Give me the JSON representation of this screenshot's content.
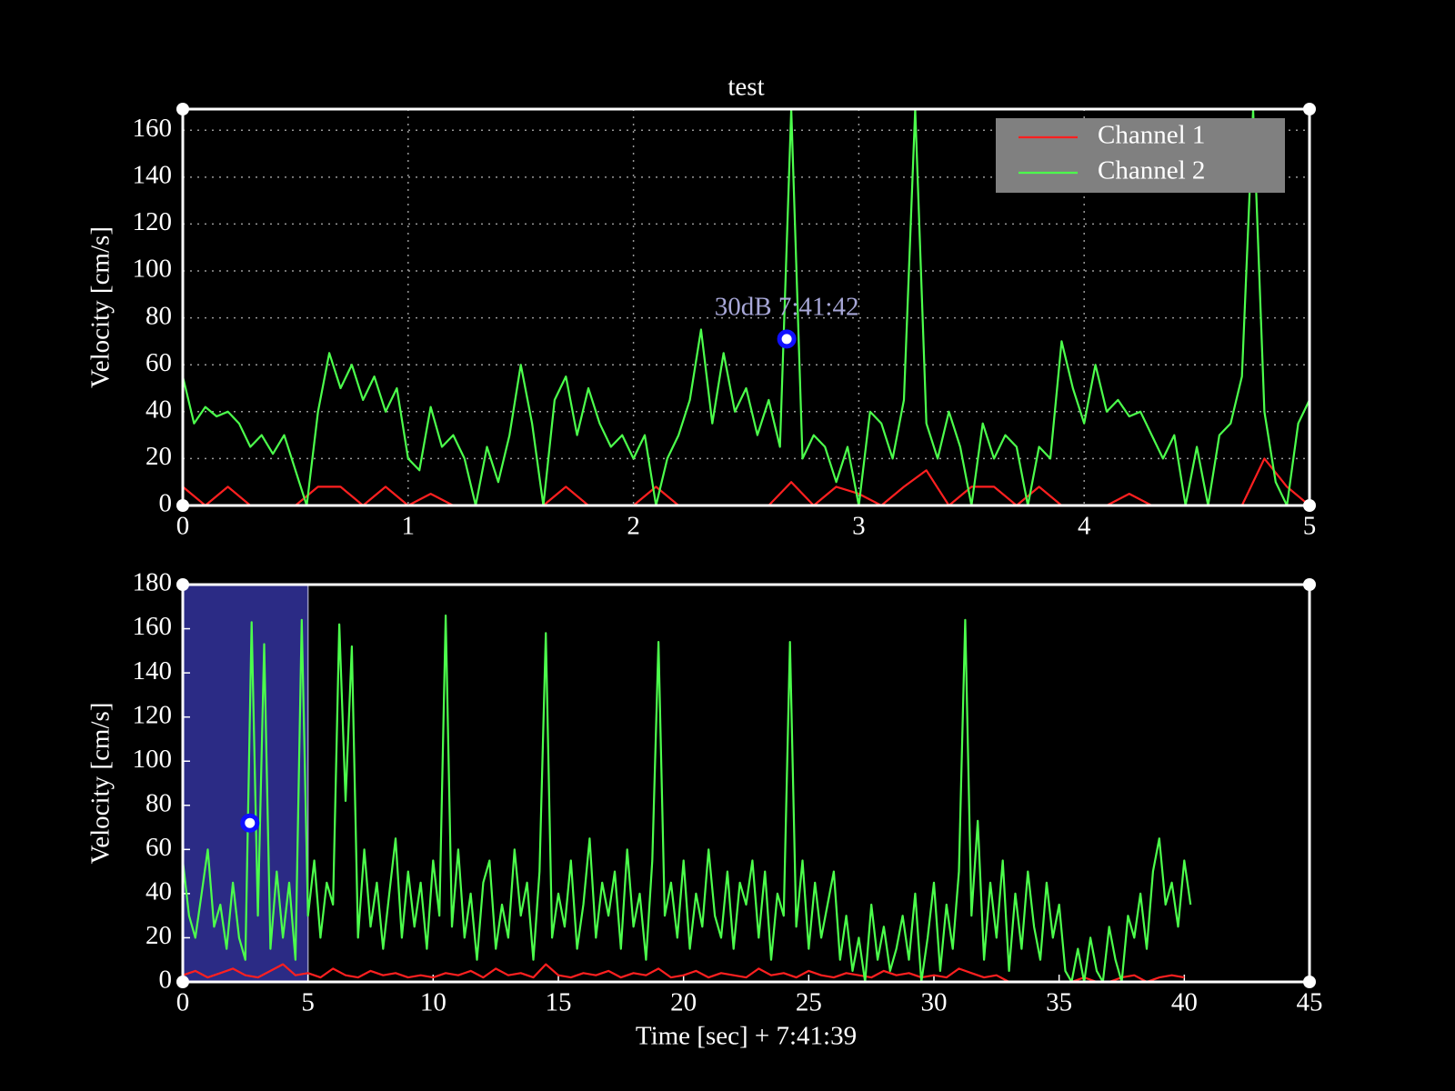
{
  "chart_data": [
    {
      "type": "line",
      "title": "test",
      "ylabel": "Velocity [cm/s]",
      "xlim": [
        0,
        5
      ],
      "xticks": [
        0,
        1,
        2,
        3,
        4,
        5
      ],
      "ylim": [
        0,
        169
      ],
      "yticks": [
        0,
        20,
        40,
        60,
        80,
        100,
        120,
        140,
        160
      ],
      "grid": true,
      "legend": "upper right",
      "series": [
        {
          "name": "Channel 1",
          "color": "#ff2020",
          "x": [
            0,
            0.1,
            0.2,
            0.3,
            0.4,
            0.5,
            0.6,
            0.7,
            0.8,
            0.9,
            1,
            1.1,
            1.2,
            1.3,
            1.4,
            1.5,
            1.6,
            1.7,
            1.8,
            1.9,
            2,
            2.1,
            2.2,
            2.3,
            2.4,
            2.5,
            2.6,
            2.7,
            2.8,
            2.9,
            3,
            3.1,
            3.2,
            3.3,
            3.4,
            3.5,
            3.6,
            3.7,
            3.8,
            3.9,
            4,
            4.1,
            4.2,
            4.3,
            4.4,
            4.5,
            4.6,
            4.7,
            4.8,
            4.9,
            5
          ],
          "values": [
            8,
            0,
            8,
            0,
            0,
            0,
            8,
            8,
            0,
            8,
            0,
            5,
            0,
            0,
            0,
            0,
            0,
            8,
            0,
            0,
            0,
            8,
            0,
            0,
            0,
            0,
            0,
            10,
            0,
            8,
            5,
            0,
            8,
            15,
            0,
            8,
            8,
            0,
            8,
            0,
            0,
            0,
            5,
            0,
            0,
            0,
            0,
            0,
            20,
            8,
            0
          ]
        },
        {
          "name": "Channel 2",
          "color": "#4cff4c",
          "x": [
            0,
            0.05,
            0.1,
            0.15,
            0.2,
            0.25,
            0.3,
            0.35,
            0.4,
            0.45,
            0.5,
            0.55,
            0.6,
            0.65,
            0.7,
            0.75,
            0.8,
            0.85,
            0.9,
            0.95,
            1,
            1.05,
            1.1,
            1.15,
            1.2,
            1.25,
            1.3,
            1.35,
            1.4,
            1.45,
            1.5,
            1.55,
            1.6,
            1.65,
            1.7,
            1.75,
            1.8,
            1.85,
            1.9,
            1.95,
            2,
            2.05,
            2.1,
            2.15,
            2.2,
            2.25,
            2.3,
            2.35,
            2.4,
            2.45,
            2.5,
            2.55,
            2.6,
            2.65,
            2.7,
            2.75,
            2.8,
            2.85,
            2.9,
            2.95,
            3,
            3.05,
            3.1,
            3.15,
            3.2,
            3.25,
            3.3,
            3.35,
            3.4,
            3.45,
            3.5,
            3.55,
            3.6,
            3.65,
            3.7,
            3.75,
            3.8,
            3.85,
            3.9,
            3.95,
            4,
            4.05,
            4.1,
            4.15,
            4.2,
            4.25,
            4.3,
            4.35,
            4.4,
            4.45,
            4.5,
            4.55,
            4.6,
            4.65,
            4.7,
            4.75,
            4.8,
            4.85,
            4.9,
            4.95,
            5
          ],
          "values": [
            55,
            35,
            42,
            38,
            40,
            35,
            25,
            30,
            22,
            30,
            15,
            0,
            40,
            65,
            50,
            60,
            45,
            55,
            40,
            50,
            20,
            15,
            42,
            25,
            30,
            20,
            0,
            25,
            10,
            30,
            60,
            35,
            0,
            45,
            55,
            30,
            50,
            35,
            25,
            30,
            20,
            30,
            0,
            20,
            30,
            45,
            75,
            35,
            65,
            40,
            50,
            30,
            45,
            25,
            169,
            20,
            30,
            25,
            10,
            25,
            0,
            40,
            35,
            20,
            45,
            169,
            35,
            20,
            40,
            25,
            0,
            35,
            20,
            30,
            25,
            0,
            25,
            20,
            70,
            50,
            35,
            60,
            40,
            45,
            38,
            40,
            30,
            20,
            30,
            0,
            25,
            0,
            30,
            35,
            55,
            169,
            40,
            10,
            0,
            35,
            45
          ]
        }
      ],
      "annotation": {
        "text": "30dB 7:41:42",
        "x": 2.68,
        "y": 71
      }
    },
    {
      "type": "line",
      "ylabel": "Velocity [cm/s]",
      "xlabel": "Time [sec] + 7:41:39",
      "xlim": [
        0,
        45
      ],
      "xticks": [
        0,
        5,
        10,
        15,
        20,
        25,
        30,
        35,
        40,
        45
      ],
      "ylim": [
        0,
        180
      ],
      "yticks": [
        0,
        20,
        40,
        60,
        80,
        100,
        120,
        140,
        160,
        180
      ],
      "grid": false,
      "span": [
        0,
        5
      ],
      "series": [
        {
          "name": "Channel 1",
          "color": "#ff2020",
          "x": [
            0,
            0.5,
            1,
            1.5,
            2,
            2.5,
            3,
            3.5,
            4,
            4.5,
            5,
            5.5,
            6,
            6.5,
            7,
            7.5,
            8,
            8.5,
            9,
            9.5,
            10,
            10.5,
            11,
            11.5,
            12,
            12.5,
            13,
            13.5,
            14,
            14.5,
            15,
            15.5,
            16,
            16.5,
            17,
            17.5,
            18,
            18.5,
            19,
            19.5,
            20,
            20.5,
            21,
            21.5,
            22,
            22.5,
            23,
            23.5,
            24,
            24.5,
            25,
            25.5,
            26,
            26.5,
            27,
            27.5,
            28,
            28.5,
            29,
            29.5,
            30,
            30.5,
            31,
            31.5,
            32,
            32.5,
            33,
            33.5,
            34,
            34.5,
            35,
            35.5,
            36,
            36.5,
            37,
            37.5,
            38,
            38.5,
            39,
            39.5,
            40
          ],
          "values": [
            3,
            5,
            2,
            4,
            6,
            3,
            2,
            5,
            8,
            3,
            4,
            2,
            6,
            3,
            2,
            5,
            3,
            4,
            2,
            3,
            2,
            4,
            3,
            5,
            2,
            6,
            3,
            4,
            2,
            8,
            3,
            2,
            4,
            3,
            5,
            2,
            4,
            3,
            6,
            2,
            3,
            5,
            2,
            4,
            3,
            2,
            6,
            3,
            4,
            2,
            5,
            3,
            2,
            4,
            3,
            2,
            5,
            3,
            4,
            2,
            3,
            2,
            6,
            4,
            2,
            3,
            0,
            0,
            0,
            0,
            0,
            0,
            2,
            0,
            0,
            2,
            3,
            0,
            2,
            3,
            2
          ]
        },
        {
          "name": "Channel 2",
          "color": "#4cff4c",
          "x": [
            0,
            0.25,
            0.5,
            0.75,
            1,
            1.25,
            1.5,
            1.75,
            2,
            2.25,
            2.5,
            2.75,
            3,
            3.25,
            3.5,
            3.75,
            4,
            4.25,
            4.5,
            4.75,
            5,
            5.25,
            5.5,
            5.75,
            6,
            6.25,
            6.5,
            6.75,
            7,
            7.25,
            7.5,
            7.75,
            8,
            8.25,
            8.5,
            8.75,
            9,
            9.25,
            9.5,
            9.75,
            10,
            10.25,
            10.5,
            10.75,
            11,
            11.25,
            11.5,
            11.75,
            12,
            12.25,
            12.5,
            12.75,
            13,
            13.25,
            13.5,
            13.75,
            14,
            14.25,
            14.5,
            14.75,
            15,
            15.25,
            15.5,
            15.75,
            16,
            16.25,
            16.5,
            16.75,
            17,
            17.25,
            17.5,
            17.75,
            18,
            18.25,
            18.5,
            18.75,
            19,
            19.25,
            19.5,
            19.75,
            20,
            20.25,
            20.5,
            20.75,
            21,
            21.25,
            21.5,
            21.75,
            22,
            22.25,
            22.5,
            22.75,
            23,
            23.25,
            23.5,
            23.75,
            24,
            24.25,
            24.5,
            24.75,
            25,
            25.25,
            25.5,
            25.75,
            26,
            26.25,
            26.5,
            26.75,
            27,
            27.25,
            27.5,
            27.75,
            28,
            28.25,
            28.5,
            28.75,
            29,
            29.25,
            29.5,
            29.75,
            30,
            30.25,
            30.5,
            30.75,
            31,
            31.25,
            31.5,
            31.75,
            32,
            32.25,
            32.5,
            32.75,
            33,
            33.25,
            33.5,
            33.75,
            34,
            34.25,
            34.5,
            34.75,
            35,
            35.25,
            35.5,
            35.75,
            36,
            36.25,
            36.5,
            36.75,
            37,
            37.25,
            37.5,
            37.75,
            38,
            38.25,
            38.5,
            38.75,
            39,
            39.25,
            39.5,
            39.75,
            40,
            40.25
          ],
          "values": [
            55,
            30,
            20,
            40,
            60,
            25,
            35,
            15,
            45,
            20,
            10,
            163,
            30,
            153,
            15,
            50,
            20,
            45,
            10,
            164,
            30,
            55,
            20,
            45,
            35,
            162,
            82,
            152,
            20,
            60,
            25,
            45,
            15,
            40,
            65,
            20,
            50,
            25,
            45,
            15,
            55,
            30,
            166,
            25,
            60,
            20,
            40,
            10,
            45,
            55,
            15,
            35,
            20,
            60,
            30,
            45,
            10,
            50,
            158,
            20,
            40,
            25,
            55,
            15,
            35,
            65,
            20,
            45,
            30,
            50,
            15,
            60,
            25,
            40,
            10,
            55,
            154,
            30,
            45,
            20,
            55,
            15,
            40,
            25,
            60,
            30,
            20,
            50,
            15,
            45,
            35,
            55,
            20,
            50,
            10,
            40,
            30,
            154,
            25,
            55,
            15,
            45,
            20,
            35,
            50,
            10,
            30,
            5,
            20,
            0,
            35,
            10,
            25,
            5,
            15,
            30,
            10,
            40,
            0,
            20,
            45,
            5,
            35,
            15,
            50,
            164,
            30,
            73,
            10,
            45,
            20,
            55,
            5,
            40,
            15,
            50,
            25,
            10,
            45,
            20,
            35,
            5,
            0,
            15,
            0,
            20,
            5,
            0,
            25,
            10,
            0,
            30,
            20,
            40,
            15,
            50,
            65,
            35,
            45,
            25,
            55,
            35
          ]
        }
      ],
      "marker": {
        "x": 2.68,
        "y": 72
      }
    }
  ]
}
